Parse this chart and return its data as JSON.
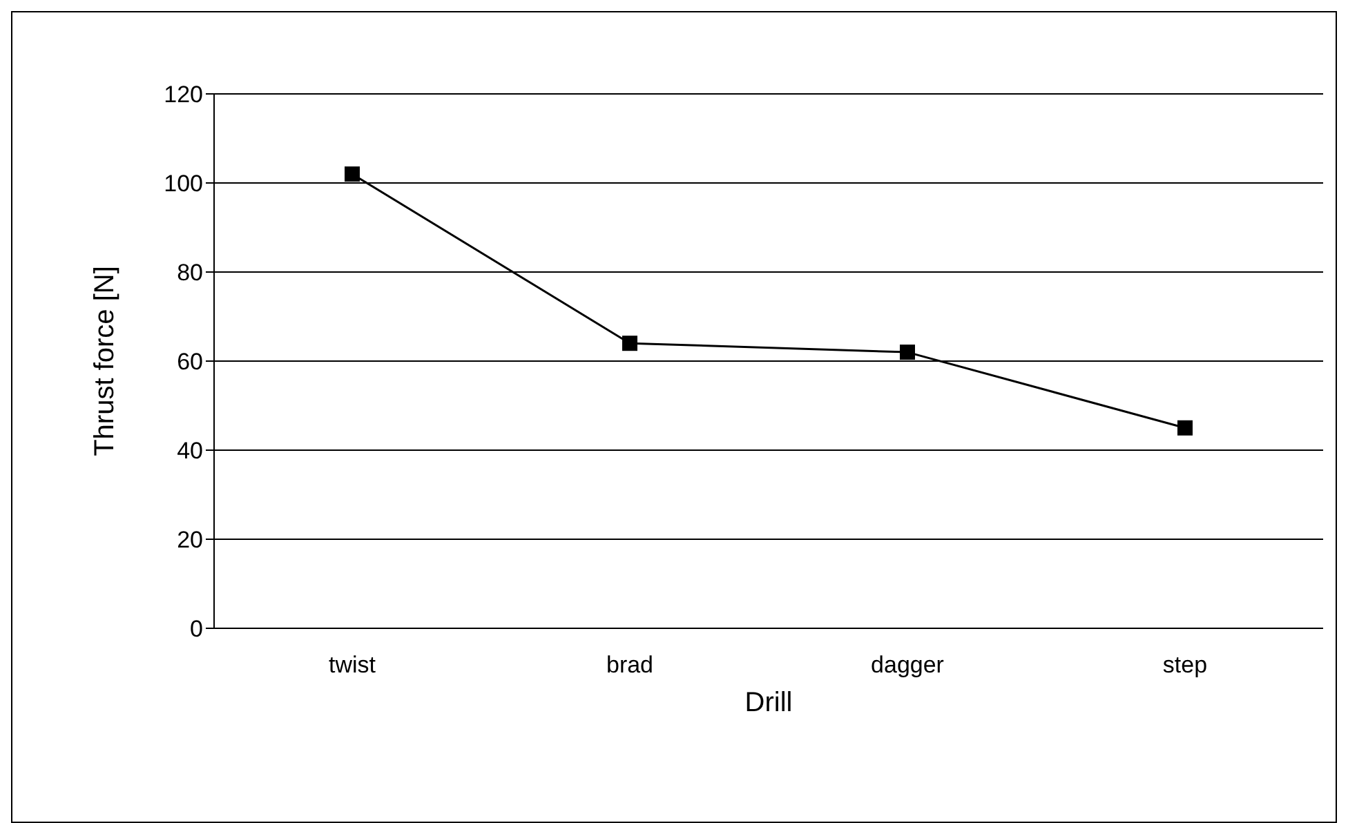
{
  "chart_data": {
    "type": "line",
    "xlabel": "Drill",
    "ylabel": "Thrust force [N]",
    "categories": [
      "twist",
      "brad",
      "dagger",
      "step"
    ],
    "series": [
      {
        "color": "#000000",
        "values": [
          102,
          64,
          62,
          45
        ]
      }
    ],
    "ylim": [
      0,
      120
    ],
    "yticks": [
      0,
      20,
      40,
      60,
      80,
      100,
      120
    ],
    "grid": "y",
    "marker": "square",
    "line_style": "solid",
    "legend": false
  }
}
